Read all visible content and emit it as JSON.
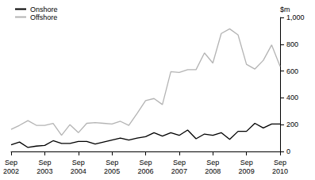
{
  "chart_data": {
    "type": "line",
    "y_label": "$m",
    "categories": [
      "Sep\n2002",
      null,
      null,
      null,
      "Sep\n2003",
      null,
      null,
      null,
      "Sep\n2004",
      null,
      null,
      null,
      "Sep\n2005",
      null,
      null,
      null,
      "Sep\n2006",
      null,
      null,
      null,
      "Sep\n2007",
      null,
      null,
      null,
      "Sep\n2008",
      null,
      null,
      null,
      "Sep\n2009",
      null,
      null,
      null,
      "Sep\n2010"
    ],
    "series": [
      {
        "name": "Onshore",
        "color": "#000000",
        "values": [
          50,
          70,
          30,
          40,
          45,
          80,
          60,
          60,
          75,
          75,
          55,
          70,
          85,
          100,
          85,
          100,
          110,
          140,
          115,
          140,
          120,
          160,
          95,
          130,
          120,
          140,
          90,
          150,
          150,
          210,
          175,
          205,
          205
        ]
      },
      {
        "name": "Offshore",
        "color": "#b3b3b3",
        "values": [
          165,
          195,
          230,
          195,
          195,
          210,
          120,
          200,
          140,
          210,
          215,
          210,
          205,
          225,
          195,
          285,
          380,
          395,
          350,
          595,
          590,
          610,
          610,
          735,
          660,
          880,
          915,
          870,
          650,
          615,
          680,
          795,
          635
        ]
      }
    ],
    "ylim": [
      0,
      1000
    ],
    "yticks": [
      0,
      200,
      400,
      600,
      800,
      1000
    ],
    "grid": false,
    "legend": "top-left"
  }
}
